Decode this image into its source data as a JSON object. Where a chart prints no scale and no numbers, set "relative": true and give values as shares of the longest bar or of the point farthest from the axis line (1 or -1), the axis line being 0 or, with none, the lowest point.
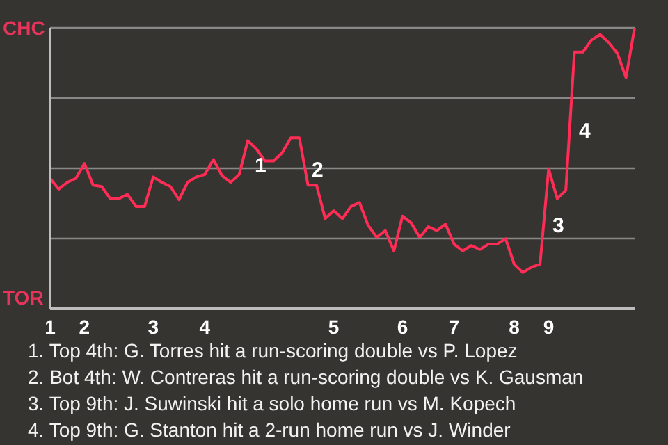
{
  "chart_data": {
    "type": "line",
    "relative": true,
    "categories": [
      "1",
      null,
      null,
      null,
      "2",
      null,
      null,
      null,
      null,
      null,
      null,
      null,
      "3",
      null,
      null,
      null,
      null,
      null,
      "4",
      null,
      null,
      null,
      null,
      null,
      null,
      null,
      null,
      null,
      null,
      null,
      null,
      null,
      null,
      "5",
      null,
      null,
      null,
      null,
      null,
      null,
      null,
      "6",
      null,
      null,
      null,
      null,
      null,
      "7",
      null,
      null,
      null,
      null,
      null,
      null,
      "8",
      null,
      null,
      null,
      "9",
      null,
      null,
      null,
      null,
      null,
      null,
      null,
      null,
      null,
      null
    ],
    "series": [
      {
        "color": "#ff2d55",
        "values": [
          0.464,
          0.426,
          0.45,
          0.464,
          0.517,
          0.44,
          0.435,
          0.392,
          0.392,
          0.407,
          0.364,
          0.364,
          0.469,
          0.45,
          0.435,
          0.388,
          0.45,
          0.469,
          0.478,
          0.531,
          0.474,
          0.45,
          0.478,
          0.598,
          0.569,
          0.526,
          0.526,
          0.555,
          0.608,
          0.608,
          0.44,
          0.44,
          0.321,
          0.349,
          0.321,
          0.364,
          0.378,
          0.297,
          0.254,
          0.278,
          0.206,
          0.33,
          0.306,
          0.254,
          0.292,
          0.278,
          0.301,
          0.23,
          0.206,
          0.225,
          0.211,
          0.23,
          0.23,
          0.249,
          0.158,
          0.129,
          0.148,
          0.158,
          0.498,
          0.392,
          0.421,
          0.914,
          0.914,
          0.957,
          0.976,
          0.947,
          0.909,
          0.823,
          1
        ]
      }
    ],
    "grid": "y",
    "marker": "none",
    "line_style": "solid",
    "legend": false,
    "annotations": [
      "CHC",
      "TOR",
      "1",
      "2",
      "3",
      "4",
      "1. Top 4th: G. Torres hit a run-scoring double vs P. Lopez",
      "2. Bot 4th: W. Contreras hit a run-scoring double vs K. Gausman",
      "3. Top 9th: J. Suwinski hit a solo home run vs M. Kopech",
      "4. Top 9th: G. Stanton hit a 2-run home run vs J. Winder"
    ]
  }
}
